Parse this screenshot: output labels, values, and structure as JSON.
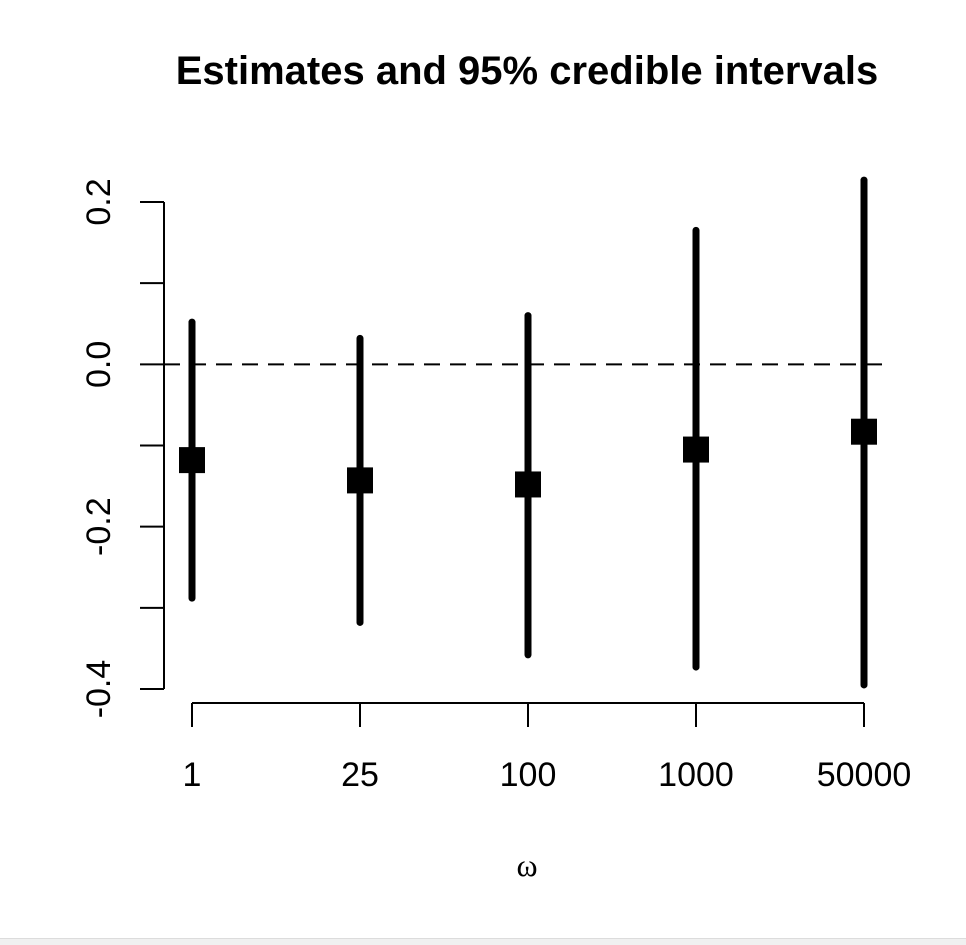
{
  "chart_data": {
    "type": "scatter",
    "title": "Estimates and 95% credible intervals",
    "xlabel": "ω",
    "ylabel": "",
    "categories": [
      "1",
      "25",
      "100",
      "1000",
      "50000"
    ],
    "series": [
      {
        "estimates": [
          -0.118,
          -0.143,
          -0.148,
          -0.105,
          -0.083
        ],
        "lower": [
          -0.288,
          -0.318,
          -0.358,
          -0.373,
          -0.395
        ],
        "upper": [
          0.052,
          0.032,
          0.06,
          0.165,
          0.227
        ]
      }
    ],
    "yticks": [
      0.2,
      0.0,
      -0.2,
      -0.4
    ],
    "ytick_labels": [
      "0.2",
      "0.0",
      "-0.2",
      "-0.4"
    ],
    "ylim": [
      -0.4,
      0.2
    ],
    "reference_line": 0.0,
    "grid": false,
    "legend": "none",
    "colors": {
      "marks": "#000000",
      "reference_line": "#000000",
      "background": "#ffffff"
    }
  }
}
